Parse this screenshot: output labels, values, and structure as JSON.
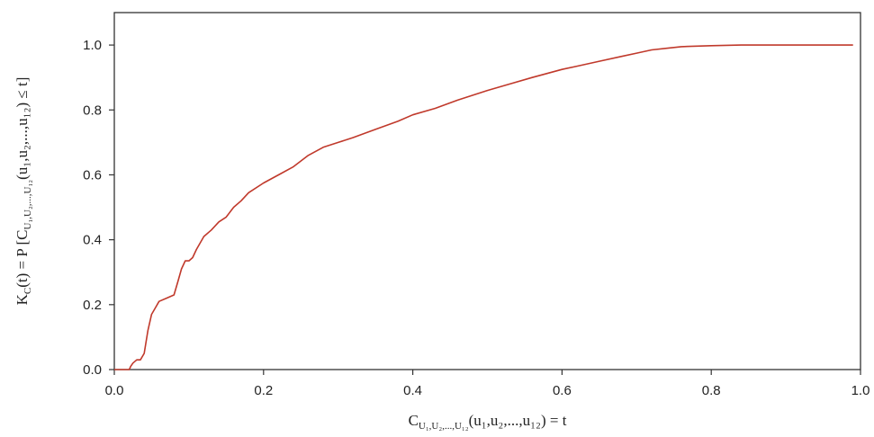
{
  "chart_data": {
    "type": "line",
    "title": "",
    "xlabel": {
      "main": "C",
      "sub": "U₁,U₂,...,U₁₂",
      "rest": "(u₁,u₂,...,u₁₂) = t"
    },
    "ylabel": {
      "prefix": "K",
      "prefix_sub": "C",
      "mid": "(t) = P [C",
      "mid_sub": "U₁,U₂,...,U₁₂",
      "rest": "(u₁,u₂,...,u₁₂) ≤ t]"
    },
    "xlim": [
      0.0,
      1.0
    ],
    "ylim": [
      0.0,
      1.1
    ],
    "xticks": [
      "0.0",
      "0.2",
      "0.4",
      "0.6",
      "0.8",
      "1.0"
    ],
    "yticks": [
      "0.0",
      "0.2",
      "0.4",
      "0.6",
      "0.8",
      "1.0"
    ],
    "xtick_values": [
      0.0,
      0.2,
      0.4,
      0.6,
      0.8,
      1.0
    ],
    "ytick_values": [
      0.0,
      0.2,
      0.4,
      0.6,
      0.8,
      1.0
    ],
    "grid": false,
    "line_color": "#c0392b",
    "series": [
      {
        "x": [
          0.0,
          0.02,
          0.022,
          0.025,
          0.03,
          0.035,
          0.04,
          0.045,
          0.05,
          0.055,
          0.06,
          0.07,
          0.08,
          0.085,
          0.09,
          0.095,
          0.1,
          0.105,
          0.11,
          0.12,
          0.13,
          0.14,
          0.15,
          0.16,
          0.17,
          0.18,
          0.2,
          0.22,
          0.24,
          0.26,
          0.28,
          0.3,
          0.32,
          0.35,
          0.38,
          0.4,
          0.43,
          0.46,
          0.5,
          0.53,
          0.56,
          0.6,
          0.62,
          0.65,
          0.68,
          0.7,
          0.72,
          0.74,
          0.76,
          0.8,
          0.84,
          0.9,
          0.95,
          0.99
        ],
        "y": [
          0.0,
          0.0,
          0.01,
          0.02,
          0.03,
          0.03,
          0.05,
          0.12,
          0.17,
          0.19,
          0.21,
          0.22,
          0.23,
          0.27,
          0.31,
          0.335,
          0.335,
          0.345,
          0.37,
          0.41,
          0.43,
          0.455,
          0.47,
          0.5,
          0.52,
          0.545,
          0.575,
          0.6,
          0.625,
          0.66,
          0.685,
          0.7,
          0.715,
          0.74,
          0.765,
          0.785,
          0.805,
          0.83,
          0.86,
          0.88,
          0.9,
          0.925,
          0.935,
          0.95,
          0.965,
          0.975,
          0.985,
          0.99,
          0.995,
          0.998,
          1.0,
          1.0,
          1.0,
          1.0
        ]
      }
    ]
  }
}
